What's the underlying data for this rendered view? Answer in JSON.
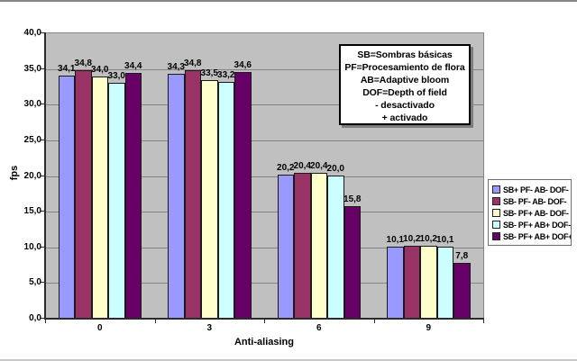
{
  "chart_data": {
    "type": "bar",
    "title": "",
    "xlabel": "Anti-aliasing",
    "ylabel": "fps",
    "categories": [
      "0",
      "3",
      "6",
      "9"
    ],
    "series": [
      {
        "name": "SB+ PF- AB- DOF-",
        "color": "#9999FF",
        "values": [
          34.1,
          34.3,
          20.2,
          10.1
        ]
      },
      {
        "name": "SB- PF- AB- DOF-",
        "color": "#993366",
        "values": [
          34.8,
          34.8,
          20.4,
          10.2
        ]
      },
      {
        "name": "SB- PF+ AB- DOF-",
        "color": "#FFFFCC",
        "values": [
          34.0,
          33.5,
          20.4,
          10.2
        ]
      },
      {
        "name": "SB- PF+ AB+ DOF-",
        "color": "#CCFFFF",
        "values": [
          33.0,
          33.2,
          20.0,
          10.1
        ]
      },
      {
        "name": "SB- PF+ AB+ DOF+",
        "color": "#660066",
        "values": [
          34.4,
          34.6,
          15.8,
          7.8
        ]
      }
    ],
    "data_labels": [
      [
        "34,1",
        "34,3",
        "20,2",
        "10,1"
      ],
      [
        "34,8",
        "34,8",
        "20,4",
        "10,2"
      ],
      [
        "34,0",
        "33,5",
        "20,4",
        "10,2"
      ],
      [
        "33,0",
        "33,2",
        "20,0",
        "10,1"
      ],
      [
        "34,4",
        "34,6",
        "15,8",
        "7,8"
      ]
    ],
    "ylim": [
      0,
      40
    ],
    "ytick_step": 5,
    "ytick_labels": [
      "0,0",
      "5,0",
      "10,0",
      "15,0",
      "20,0",
      "25,0",
      "30,0",
      "35,0",
      "40,0"
    ],
    "grid": true,
    "legend_position": "right",
    "plot_bg": "#C0C0C0",
    "gridline_color": "#848484",
    "decimal_separator": ","
  },
  "annotation_box": {
    "lines": [
      "SB=Sombras básicas",
      "PF=Procesamiento de flora",
      "AB=Adaptive bloom",
      "DOF=Depth of field",
      "- desactivado",
      "+ activado"
    ]
  }
}
